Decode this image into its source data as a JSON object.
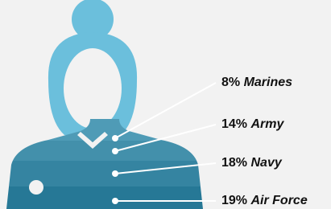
{
  "items": [
    {
      "share": "8%",
      "branch": "Marines"
    },
    {
      "share": "14%",
      "branch": "Army"
    },
    {
      "share": "18%",
      "branch": "Navy"
    },
    {
      "share": "19%",
      "branch": "Air Force"
    }
  ]
}
